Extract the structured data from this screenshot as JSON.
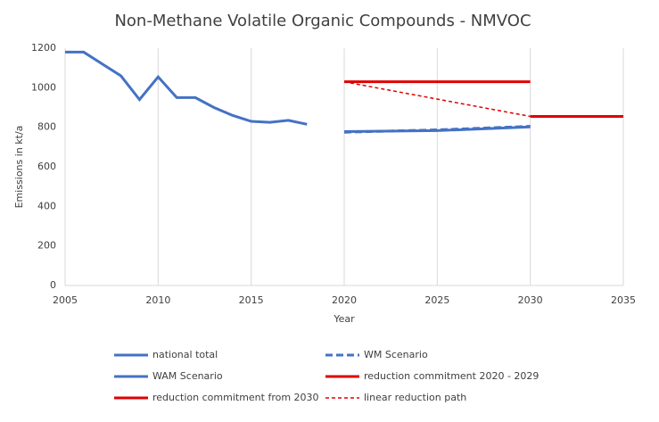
{
  "chart_data": {
    "type": "line",
    "title": "Non-Methane Volatile Organic Compounds - NMVOC",
    "xlabel": "Year",
    "ylabel": "Emissions in kt/a",
    "xlim": [
      2005,
      2035
    ],
    "xticks": [
      2005,
      2010,
      2015,
      2020,
      2025,
      2030,
      2035
    ],
    "ylim": [
      0,
      1200
    ],
    "yticks": [
      0,
      200,
      400,
      600,
      800,
      1000,
      1200
    ],
    "grid": "x",
    "legend": "bottom",
    "series": [
      {
        "name": "national total",
        "color": "#4472c4",
        "dash": false,
        "line_width": 3,
        "x": [
          2005,
          2006,
          2007,
          2008,
          2009,
          2010,
          2011,
          2012,
          2013,
          2014,
          2015,
          2016,
          2017,
          2018
        ],
        "values": [
          1180,
          1180,
          1120,
          1060,
          940,
          1055,
          950,
          950,
          900,
          860,
          830,
          825,
          835,
          815
        ]
      },
      {
        "name": "WM Scenario",
        "color": "#4472c4",
        "dash": true,
        "line_width": 3,
        "x": [
          2020,
          2025,
          2030
        ],
        "values": [
          775,
          787,
          805
        ]
      },
      {
        "name": "WAM Scenario",
        "color": "#4472c4",
        "dash": false,
        "line_width": 3,
        "x": [
          2020,
          2025,
          2030
        ],
        "values": [
          778,
          783,
          802
        ]
      },
      {
        "name": "reduction commitment 2020 - 2029",
        "color": "#e00000",
        "dash": false,
        "line_width": 3,
        "x": [
          2020,
          2030
        ],
        "values": [
          1030,
          1030
        ]
      },
      {
        "name": "reduction commitment from 2030",
        "color": "#e00000",
        "dash": false,
        "line_width": 3,
        "x": [
          2030,
          2035
        ],
        "values": [
          855,
          855
        ]
      },
      {
        "name": "linear reduction path",
        "color": "#e00000",
        "dash": true,
        "line_width": 1.5,
        "x": [
          2020,
          2030
        ],
        "values": [
          1030,
          855
        ]
      }
    ]
  }
}
